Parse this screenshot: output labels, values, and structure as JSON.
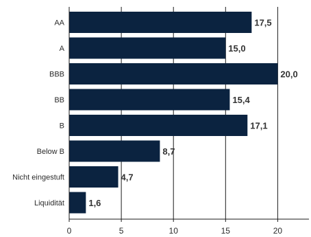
{
  "chart_data": {
    "type": "bar",
    "orientation": "horizontal",
    "title": "",
    "xlabel": "",
    "ylabel": "",
    "categories": [
      "AA",
      "A",
      "BBB",
      "BB",
      "B",
      "Below B",
      "Nicht eingestuft",
      "Liquidität"
    ],
    "values": [
      17.5,
      15.0,
      20.0,
      15.4,
      17.1,
      8.7,
      4.7,
      1.6
    ],
    "value_labels": [
      "17,5",
      "15,0",
      "20,0",
      "15,4",
      "17,1",
      "8,7",
      "4,7",
      "1,6"
    ],
    "xlim": [
      0,
      23
    ],
    "xticks": [
      0,
      5,
      10,
      15,
      20
    ],
    "xtick_labels": [
      "0",
      "5",
      "10",
      "15",
      "20"
    ],
    "grid": "vertical",
    "legend": "none",
    "colors": {
      "bar": "#0b2340",
      "grid": "#1a1a1a",
      "axis": "#1a1a1a"
    }
  }
}
